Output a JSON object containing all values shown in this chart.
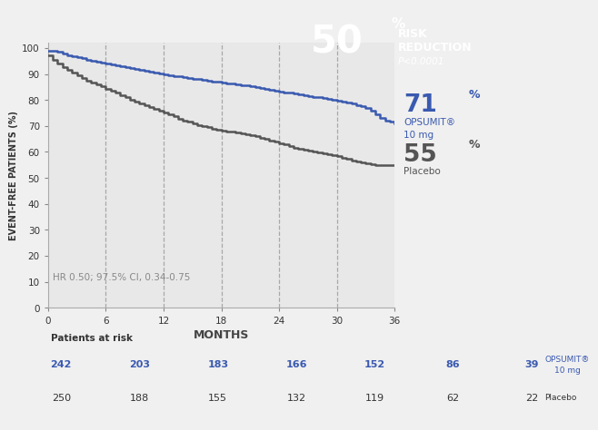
{
  "blue_x": [
    0,
    0.5,
    1,
    1.5,
    2,
    2.5,
    3,
    3.5,
    4,
    4.5,
    5,
    5.5,
    6,
    6.5,
    7,
    7.5,
    8,
    8.5,
    9,
    9.5,
    10,
    10.5,
    11,
    11.5,
    12,
    12.5,
    13,
    13.5,
    14,
    14.5,
    15,
    15.5,
    16,
    16.5,
    17,
    17.5,
    18,
    18.5,
    19,
    19.5,
    20,
    20.5,
    21,
    21.5,
    22,
    22.5,
    23,
    23.5,
    24,
    24.5,
    25,
    25.5,
    26,
    26.5,
    27,
    27.5,
    28,
    28.5,
    29,
    29.5,
    30,
    30.5,
    31,
    31.5,
    32,
    32.5,
    33,
    33.5,
    34,
    34.5,
    35,
    35.5,
    36
  ],
  "blue_y": [
    99,
    98.8,
    98.5,
    97.8,
    97.2,
    96.8,
    96.3,
    96.0,
    95.5,
    95.2,
    94.8,
    94.4,
    94.0,
    93.7,
    93.4,
    93.0,
    92.6,
    92.2,
    91.8,
    91.5,
    91.2,
    90.8,
    90.5,
    90.2,
    89.8,
    89.5,
    89.2,
    89.0,
    88.7,
    88.5,
    88.2,
    88.0,
    87.7,
    87.5,
    87.2,
    87.0,
    86.8,
    86.5,
    86.2,
    86.0,
    85.7,
    85.5,
    85.2,
    85.0,
    84.7,
    84.4,
    84.0,
    83.7,
    83.3,
    83.0,
    82.7,
    82.4,
    82.1,
    81.8,
    81.5,
    81.2,
    81.0,
    80.7,
    80.4,
    80.1,
    79.8,
    79.5,
    79.0,
    78.5,
    78.0,
    77.5,
    77.0,
    76.0,
    74.5,
    73.0,
    72.0,
    71.5,
    71
  ],
  "gray_x": [
    0,
    0.5,
    1,
    1.5,
    2,
    2.5,
    3,
    3.5,
    4,
    4.5,
    5,
    5.5,
    6,
    6.5,
    7,
    7.5,
    8,
    8.5,
    9,
    9.5,
    10,
    10.5,
    11,
    11.5,
    12,
    12.5,
    13,
    13.5,
    14,
    14.5,
    15,
    15.5,
    16,
    16.5,
    17,
    17.5,
    18,
    18.5,
    19,
    19.5,
    20,
    20.5,
    21,
    21.5,
    22,
    22.5,
    23,
    23.5,
    24,
    24.5,
    25,
    25.5,
    26,
    26.5,
    27,
    27.5,
    28,
    28.5,
    29,
    29.5,
    30,
    30.5,
    31,
    31.5,
    32,
    32.5,
    33,
    33.5,
    34,
    34.5,
    35,
    35.5,
    36
  ],
  "gray_y": [
    97,
    95.5,
    94,
    92.5,
    91.5,
    90.5,
    89.5,
    88.5,
    87.5,
    86.8,
    86.0,
    85.2,
    84.3,
    83.5,
    82.7,
    81.8,
    81.0,
    80.2,
    79.4,
    78.7,
    78.0,
    77.3,
    76.5,
    75.8,
    75.0,
    74.3,
    73.6,
    72.8,
    72.1,
    71.5,
    70.8,
    70.3,
    69.8,
    69.4,
    69.0,
    68.7,
    68.3,
    68.0,
    67.7,
    67.4,
    67.0,
    66.7,
    66.3,
    66.0,
    65.5,
    65.0,
    64.5,
    64.0,
    63.3,
    62.8,
    62.3,
    61.7,
    61.2,
    60.8,
    60.4,
    60.0,
    59.7,
    59.4,
    59.0,
    58.7,
    58.3,
    57.8,
    57.3,
    56.8,
    56.4,
    56.0,
    55.5,
    55.2,
    55.0,
    55.0,
    55.0,
    55.0,
    55
  ],
  "blue_color": "#3a5ab0",
  "gray_color": "#555555",
  "plot_bg_color": "#e8e8e8",
  "fig_bg_color": "#f0f0f0",
  "ylabel": "EVENT-FREE PATIENTS (%)",
  "xlabel": "MONTHS",
  "yticks": [
    0,
    10,
    20,
    30,
    40,
    50,
    60,
    70,
    80,
    90,
    100
  ],
  "xticks": [
    0,
    6,
    12,
    18,
    24,
    30,
    36
  ],
  "ylim": [
    0,
    102
  ],
  "xlim": [
    0,
    36
  ],
  "hr_text": "HR 0.50; 97.5% CI, 0.34-0.75",
  "blue_num": "71",
  "blue_pct": "%",
  "gray_num": "55",
  "gray_pct": "%",
  "blue_label1": "OPSUMIT®",
  "blue_label2": "10 mg",
  "gray_label": "Placebo",
  "risk_reduction_num": "50",
  "risk_reduction_pct": "%",
  "risk_reduction_text1": "RISK",
  "risk_reduction_text2": "REDUCTION",
  "risk_reduction_pval": "P<0.0001",
  "box_color": "#c8003c",
  "risk_header": "Patients at risk",
  "blue_risk": [
    "242",
    "203",
    "183",
    "166",
    "152",
    "86",
    "39"
  ],
  "gray_risk": [
    "250",
    "188",
    "155",
    "132",
    "119",
    "62",
    "22"
  ],
  "opsumit_risk_label": "OPSUMIT®\n10 mg",
  "placebo_risk_label": "Placebo",
  "dashed_vlines": [
    6,
    12,
    18,
    24,
    30
  ]
}
